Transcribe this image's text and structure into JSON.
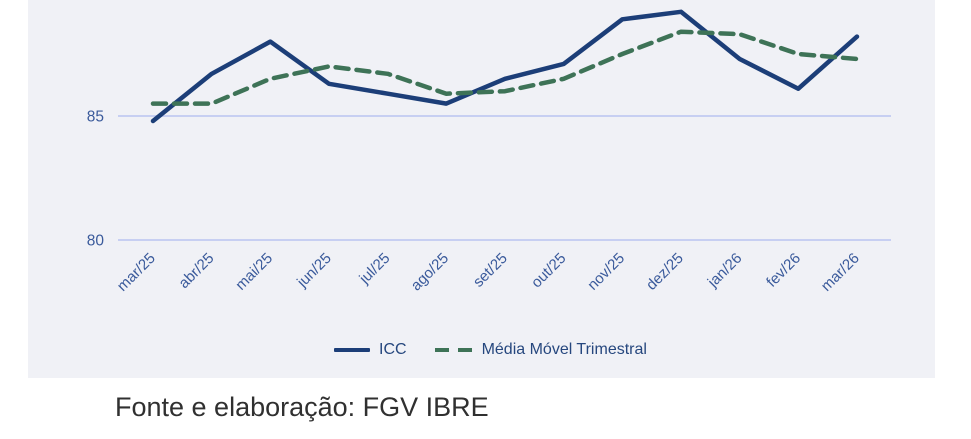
{
  "chart_data": {
    "type": "line",
    "title": "",
    "xlabel": "",
    "ylabel": "",
    "categories": [
      "mar/25",
      "abr/25",
      "mai/25",
      "jun/25",
      "jul/25",
      "ago/25",
      "set/25",
      "out/25",
      "nov/25",
      "dez/25",
      "jan/26",
      "fev/26",
      "mar/26"
    ],
    "series": [
      {
        "id": "icc-line",
        "name": "ICC",
        "style": "solid",
        "color_key": "icc_line",
        "values": [
          84.8,
          86.7,
          88.0,
          86.3,
          85.9,
          85.5,
          86.5,
          87.1,
          88.9,
          89.2,
          87.3,
          86.1,
          88.2
        ]
      },
      {
        "id": "moving-average-line",
        "name": "Média Móvel Trimestral",
        "style": "dashed",
        "color_key": "moving_avg_line",
        "values": [
          85.5,
          85.5,
          86.5,
          87.0,
          86.7,
          85.9,
          86.0,
          86.5,
          87.5,
          88.4,
          88.3,
          87.5,
          87.3
        ]
      }
    ],
    "y_ticks": [
      85,
      80
    ],
    "ylim": [
      80,
      89.7
    ],
    "grid": "horizontal",
    "legend_position": "bottom"
  },
  "source_note": "Fonte e elaboração: FGV IBRE",
  "colors": {
    "background": "#ffffff",
    "card_background": "#f0f1f6",
    "icc_line": "#1c3e78",
    "moving_avg_line": "#3e7357",
    "gridline": "#c7cff2",
    "axis_label": "#3a5a9b",
    "legend_text": "#26477e",
    "source_text": "#303030"
  }
}
